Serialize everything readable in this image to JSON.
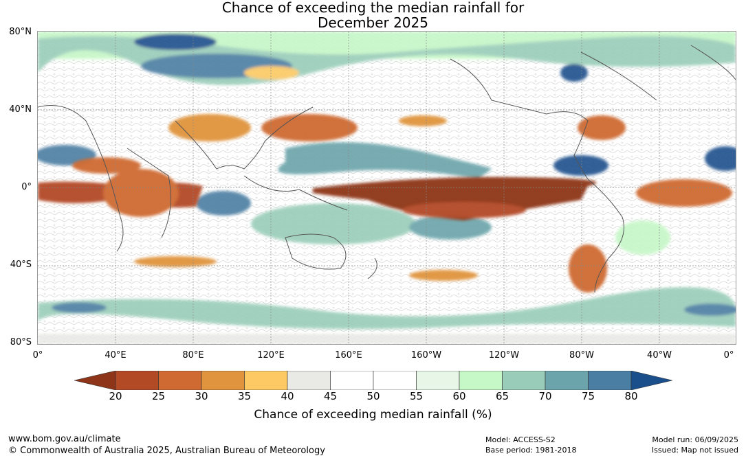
{
  "title": {
    "line1": "Chance of exceeding the median rainfall for",
    "line2": "December 2025"
  },
  "map": {
    "lat_labels": [
      "80°N",
      "40°N",
      "0°",
      "40°S",
      "80°S"
    ],
    "lon_labels": [
      "0°",
      "40°E",
      "80°E",
      "120°E",
      "160°E",
      "160°W",
      "120°W",
      "80°W",
      "40°W",
      "0°"
    ]
  },
  "colorbar": {
    "ticks": [
      "20",
      "25",
      "30",
      "35",
      "40",
      "45",
      "50",
      "55",
      "60",
      "65",
      "70",
      "75",
      "80"
    ],
    "colors": [
      "#8e3418",
      "#b34a26",
      "#cf6a33",
      "#e0943e",
      "#fcc964",
      "#e9e9e6",
      "#ffffff",
      "#ffffff",
      "#e8f6e8",
      "#c6f7c7",
      "#9acdb9",
      "#6ba4aa",
      "#4b7ea3",
      "#1a4f8c"
    ],
    "title": "Chance of exceeding median rainfall (%)"
  },
  "footer": {
    "url": "www.bom.gov.au/climate",
    "copyright": "© Commonwealth of Australia 2025, Australian Bureau of Meteorology",
    "model": "Model: ACCESS-S2",
    "base_period": "Base period: 1981-2018",
    "model_run": "Model run: 06/09/2025",
    "issued": "Issued: Map not issued"
  }
}
